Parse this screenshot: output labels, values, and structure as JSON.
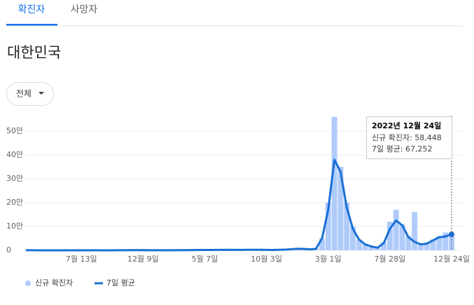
{
  "tabs": [
    "확진자",
    "사망자"
  ],
  "region": "대한민국",
  "filter": "전체",
  "tooltip": {
    "date": "2022년 12월 24일",
    "lines": [
      "신규 확진자: 58,448",
      "7일 평균: 67,252"
    ]
  },
  "chart_data": {
    "type": "bar-line",
    "categories": [
      null,
      null,
      null,
      null,
      null,
      null,
      null,
      null,
      null,
      "7월 13일",
      null,
      null,
      null,
      null,
      null,
      null,
      null,
      null,
      null,
      "12월 9일",
      null,
      null,
      null,
      null,
      null,
      null,
      null,
      null,
      null,
      "5월 7일",
      null,
      null,
      null,
      null,
      null,
      null,
      null,
      null,
      null,
      "10월 3일",
      null,
      null,
      null,
      null,
      null,
      null,
      null,
      null,
      null,
      "3월 1일",
      null,
      null,
      null,
      null,
      null,
      null,
      null,
      null,
      null,
      "7월 28일",
      null,
      null,
      null,
      null,
      null,
      null,
      null,
      null,
      null,
      "12월 24일"
    ],
    "series": [
      {
        "name": "신규 확진자",
        "color": "#aecbfa",
        "values": [
          250,
          300,
          100,
          50,
          30,
          40,
          50,
          40,
          40,
          60,
          40,
          300,
          100,
          80,
          100,
          250,
          500,
          1000,
          900,
          600,
          450,
          400,
          550,
          450,
          600,
          700,
          600,
          1300,
          1600,
          1700,
          1500,
          2000,
          1800,
          2500,
          1700,
          1700,
          2500,
          2000,
          2400,
          2000,
          1500,
          2500,
          3000,
          5000,
          7000,
          6000,
          3500,
          7000,
          50000,
          200000,
          560000,
          350000,
          200000,
          100000,
          45000,
          25000,
          15000,
          10000,
          35000,
          120000,
          170000,
          110000,
          60000,
          160000,
          25000,
          30000,
          45000,
          60000,
          75000,
          58448
        ]
      },
      {
        "name": "7일 평균",
        "color": "#1a6fd4",
        "values": [
          200,
          250,
          100,
          50,
          30,
          40,
          50,
          40,
          40,
          50,
          40,
          250,
          100,
          80,
          100,
          200,
          450,
          900,
          850,
          600,
          450,
          400,
          500,
          450,
          550,
          650,
          600,
          1200,
          1500,
          1600,
          1500,
          1800,
          1800,
          2300,
          1700,
          1800,
          2300,
          2100,
          2300,
          2000,
          1600,
          2300,
          2800,
          4500,
          6500,
          6000,
          4000,
          6000,
          50000,
          170000,
          380000,
          330000,
          180000,
          90000,
          45000,
          25000,
          16000,
          11000,
          30000,
          90000,
          125000,
          105000,
          55000,
          35000,
          25000,
          28000,
          42000,
          55000,
          58000,
          67252
        ]
      }
    ],
    "ylim": [
      0,
      565000
    ],
    "yticks": [
      0,
      {
        "value": 100000,
        "label": "10만"
      },
      {
        "value": 200000,
        "label": "20만"
      },
      {
        "value": 300000,
        "label": "30만"
      },
      {
        "value": 400000,
        "label": "40만"
      },
      {
        "value": 500000,
        "label": "50만"
      }
    ],
    "grid": true
  }
}
